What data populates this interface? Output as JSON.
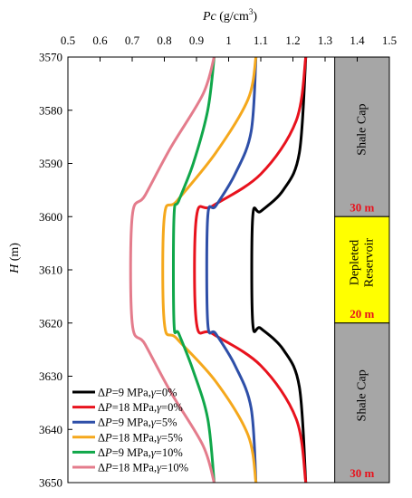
{
  "chart_data": {
    "type": "line",
    "title": "",
    "xlabel": {
      "italic": "Pc",
      "rest": " (g/cm",
      "sup": "3",
      "close": ")"
    },
    "ylabel": {
      "italic": "H",
      "rest": " (m)"
    },
    "xlim": [
      0.5,
      1.5
    ],
    "ylim": [
      3570,
      3650
    ],
    "y_inverted": true,
    "x_axis_position": "top",
    "x_ticks": [
      "0.5",
      "0.6",
      "0.7",
      "0.8",
      "0.9",
      "1",
      "1.1",
      "1.2",
      "1.3",
      "1.4",
      "1.5"
    ],
    "y_ticks": [
      "3570",
      "3580",
      "3590",
      "3600",
      "3610",
      "3620",
      "3630",
      "3640",
      "3650"
    ],
    "grid": false,
    "legend_position": "bottom-left",
    "series": [
      {
        "name": "ΔP=9 MPa,γ=0%",
        "delta": "Δ",
        "p": "P",
        "param": "=9 MPa,",
        "gamma": "γ",
        "tail": "=0%",
        "color": "#000000",
        "x": [
          1.24,
          1.22,
          1.17,
          1.1,
          1.075,
          1.075,
          1.1,
          1.17,
          1.22,
          1.24
        ],
        "y": [
          3570,
          3588,
          3595,
          3599,
          3600,
          3620,
          3621,
          3625,
          3632,
          3650
        ]
      },
      {
        "name": "ΔP=18 MPa,γ=0%",
        "delta": "Δ",
        "p": "P",
        "param": "=18 MPa,",
        "gamma": "γ",
        "tail": "=0%",
        "color": "#e8121d",
        "x": [
          1.24,
          1.21,
          1.1,
          0.95,
          0.9,
          0.9,
          0.95,
          1.1,
          1.21,
          1.24
        ],
        "y": [
          3570,
          3582,
          3592,
          3598,
          3600,
          3620,
          3622,
          3628,
          3638,
          3650
        ]
      },
      {
        "name": "ΔP=9 MPa,γ=5%",
        "delta": "Δ",
        "p": "P",
        "param": "=9 MPa,",
        "gamma": "γ",
        "tail": "=5%",
        "color": "#2e4fa8",
        "x": [
          1.085,
          1.07,
          1.02,
          0.96,
          0.935,
          0.935,
          0.96,
          1.02,
          1.07,
          1.085
        ],
        "y": [
          3570,
          3584,
          3592,
          3598,
          3600,
          3620,
          3622,
          3628,
          3636,
          3650
        ]
      },
      {
        "name": "ΔP=18 MPa,γ=5%",
        "delta": "Δ",
        "p": "P",
        "param": "=18 MPa,",
        "gamma": "γ",
        "tail": "=5%",
        "color": "#f5a81c",
        "x": [
          1.085,
          1.06,
          0.96,
          0.84,
          0.8,
          0.8,
          0.84,
          0.96,
          1.06,
          1.085
        ],
        "y": [
          3570,
          3578,
          3588,
          3597,
          3600,
          3620,
          3623,
          3631,
          3641,
          3650
        ]
      },
      {
        "name": "ΔP=9 MPa,γ=10%",
        "delta": "Δ",
        "p": "P",
        "param": "=9 MPa,",
        "gamma": "γ",
        "tail": "=10%",
        "color": "#10a74a",
        "x": [
          0.955,
          0.935,
          0.89,
          0.845,
          0.83,
          0.83,
          0.845,
          0.89,
          0.935,
          0.955
        ],
        "y": [
          3570,
          3580,
          3590,
          3597,
          3600,
          3620,
          3622,
          3629,
          3638,
          3650
        ]
      },
      {
        "name": "ΔP=18 MPa,γ=10%",
        "delta": "Δ",
        "p": "P",
        "param": "=18 MPa,",
        "gamma": "γ",
        "tail": "=10%",
        "color": "#e47c8c",
        "x": [
          0.955,
          0.92,
          0.82,
          0.74,
          0.7,
          0.7,
          0.74,
          0.82,
          0.92,
          0.955
        ],
        "y": [
          3570,
          3577,
          3587,
          3596,
          3600,
          3620,
          3624,
          3633,
          3643,
          3650
        ]
      }
    ],
    "strata": [
      {
        "label": "Shale Cap",
        "thickness": "30 m",
        "y_top": 3570,
        "y_bottom": 3600,
        "fill": "#a6a6a6",
        "label_lines": [
          "Shale Cap"
        ]
      },
      {
        "label": "Depleted Reservoir",
        "thickness": "20 m",
        "y_top": 3600,
        "y_bottom": 3620,
        "fill": "#ffff00",
        "label_lines": [
          "Depleted",
          "Reservoir"
        ]
      },
      {
        "label": "Shale Cap",
        "thickness": "30 m",
        "y_top": 3620,
        "y_bottom": 3650,
        "fill": "#a6a6a6",
        "label_lines": [
          "Shale Cap"
        ]
      }
    ],
    "strata_x_range": [
      1.33,
      1.5
    ],
    "thickness_color": "#e8121d"
  }
}
